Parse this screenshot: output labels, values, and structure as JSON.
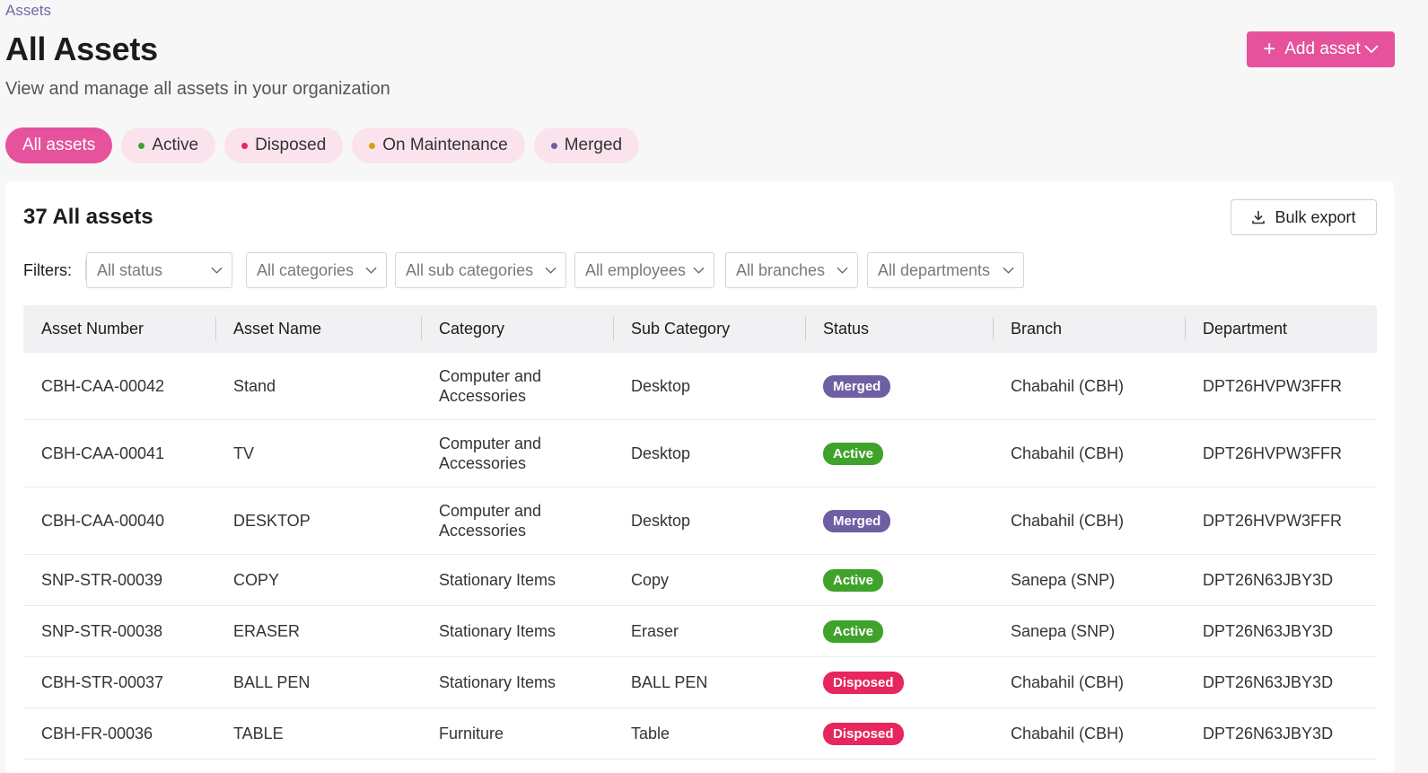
{
  "breadcrumb": "Assets",
  "page": {
    "title": "All Assets",
    "subtitle": "View and manage all assets in your organization",
    "add_label": "Add asset"
  },
  "tabs": [
    {
      "label": "All assets",
      "dot": null
    },
    {
      "label": "Active",
      "dot": "#3fa32b"
    },
    {
      "label": "Disposed",
      "dot": "#e8265e"
    },
    {
      "label": "On Maintenance",
      "dot": "#d4a017"
    },
    {
      "label": "Merged",
      "dot": "#6e5fa4"
    }
  ],
  "card": {
    "count_title": "37 All assets",
    "export_label": "Bulk export",
    "filters_label": "Filters:"
  },
  "filters": [
    "All status",
    "All categories",
    "All sub categories",
    "All employees",
    "All branches",
    "All departments"
  ],
  "columns": [
    "Asset Number",
    "Asset Name",
    "Category",
    "Sub Category",
    "Status",
    "Branch",
    "Department"
  ],
  "status_colors": {
    "Merged": "#6e5fa4",
    "Active": "#3fa32b",
    "Disposed": "#e8265e"
  },
  "rows": [
    {
      "number": "CBH-CAA-00042",
      "name": "Stand",
      "category": "Computer and Accessories",
      "sub": "Desktop",
      "status": "Merged",
      "branch": "Chabahil (CBH)",
      "dept": "DPT26HVPW3FFR"
    },
    {
      "number": "CBH-CAA-00041",
      "name": "TV",
      "category": "Computer and Accessories",
      "sub": "Desktop",
      "status": "Active",
      "branch": "Chabahil (CBH)",
      "dept": "DPT26HVPW3FFR"
    },
    {
      "number": "CBH-CAA-00040",
      "name": "DESKTOP",
      "category": "Computer and Accessories",
      "sub": "Desktop",
      "status": "Merged",
      "branch": "Chabahil (CBH)",
      "dept": "DPT26HVPW3FFR"
    },
    {
      "number": "SNP-STR-00039",
      "name": "COPY",
      "category": "Stationary Items",
      "sub": "Copy",
      "status": "Active",
      "branch": "Sanepa (SNP)",
      "dept": "DPT26N63JBY3D"
    },
    {
      "number": "SNP-STR-00038",
      "name": "ERASER",
      "category": "Stationary Items",
      "sub": "Eraser",
      "status": "Active",
      "branch": "Sanepa (SNP)",
      "dept": "DPT26N63JBY3D"
    },
    {
      "number": "CBH-STR-00037",
      "name": "BALL PEN",
      "category": "Stationary Items",
      "sub": "BALL PEN",
      "status": "Disposed",
      "branch": "Chabahil (CBH)",
      "dept": "DPT26N63JBY3D"
    },
    {
      "number": "CBH-FR-00036",
      "name": "TABLE",
      "category": "Furniture",
      "sub": "Table",
      "status": "Disposed",
      "branch": "Chabahil (CBH)",
      "dept": "DPT26N63JBY3D"
    }
  ]
}
